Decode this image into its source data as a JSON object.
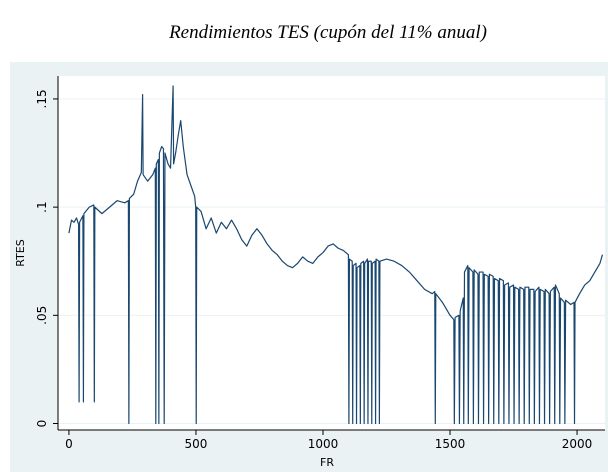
{
  "chart_data": {
    "type": "line",
    "title": "Rendimientos TES (cupón del 11% anual)",
    "x_label": "FR",
    "y_label": "RTES",
    "color": "#1a476f",
    "grid": true,
    "xlim": [
      -43,
      2110
    ],
    "ylim": [
      -0.003,
      0.1606
    ],
    "xticks": [
      0,
      500,
      1000,
      1500,
      2000
    ],
    "yticks": [
      0,
      {
        "value": 0.05,
        "label": ".05"
      },
      {
        "value": 0.1,
        "label": ".1"
      },
      {
        "value": 0.15,
        "label": ".15"
      }
    ],
    "x": [
      0,
      10,
      20,
      30,
      38,
      40,
      42,
      55,
      57,
      59,
      80,
      98,
      100,
      102,
      130,
      160,
      190,
      220,
      234,
      236,
      238,
      255,
      270,
      285,
      290,
      292,
      310,
      330,
      340,
      342,
      344,
      352,
      354,
      356,
      365,
      372,
      375,
      378,
      390,
      400,
      410,
      412,
      420,
      430,
      440,
      450,
      465,
      480,
      495,
      499,
      501,
      503,
      520,
      540,
      560,
      580,
      600,
      620,
      640,
      660,
      680,
      700,
      720,
      740,
      760,
      780,
      800,
      820,
      840,
      860,
      880,
      900,
      920,
      940,
      960,
      980,
      1000,
      1020,
      1040,
      1060,
      1080,
      1100,
      1102,
      1104,
      1115,
      1117,
      1119,
      1130,
      1132,
      1134,
      1145,
      1147,
      1149,
      1160,
      1162,
      1164,
      1175,
      1177,
      1179,
      1190,
      1192,
      1194,
      1205,
      1207,
      1209,
      1220,
      1222,
      1224,
      1250,
      1280,
      1310,
      1340,
      1370,
      1400,
      1430,
      1440,
      1442,
      1444,
      1470,
      1500,
      1515,
      1517,
      1520,
      1535,
      1537,
      1540,
      1552,
      1554,
      1557,
      1570,
      1572,
      1575,
      1590,
      1592,
      1595,
      1610,
      1612,
      1615,
      1630,
      1632,
      1635,
      1650,
      1652,
      1655,
      1670,
      1672,
      1675,
      1690,
      1692,
      1695,
      1710,
      1712,
      1715,
      1730,
      1732,
      1735,
      1750,
      1752,
      1755,
      1770,
      1772,
      1775,
      1790,
      1792,
      1795,
      1810,
      1812,
      1815,
      1830,
      1832,
      1835,
      1850,
      1852,
      1855,
      1870,
      1872,
      1875,
      1890,
      1892,
      1895,
      1910,
      1912,
      1915,
      1930,
      1932,
      1935,
      1950,
      1952,
      1955,
      1975,
      1988,
      1990,
      1992,
      2010,
      2030,
      2050,
      2070,
      2090,
      2100
    ],
    "values": [
      0.088,
      0.094,
      0.093,
      0.095,
      0.092,
      0.01,
      0.093,
      0.096,
      0.01,
      0.097,
      0.1,
      0.101,
      0.01,
      0.1,
      0.097,
      0.1,
      0.103,
      0.102,
      0.103,
      0,
      0.104,
      0.106,
      0.112,
      0.116,
      0.152,
      0.115,
      0.112,
      0.115,
      0.118,
      0,
      0.12,
      0.122,
      0,
      0.125,
      0.128,
      0.127,
      0,
      0.125,
      0.12,
      0.118,
      0.156,
      0.12,
      0.125,
      0.133,
      0.14,
      0.128,
      0.115,
      0.11,
      0.105,
      0.1,
      0,
      0.1,
      0.098,
      0.09,
      0.095,
      0.088,
      0.093,
      0.09,
      0.094,
      0.09,
      0.085,
      0.082,
      0.087,
      0.09,
      0.087,
      0.083,
      0.08,
      0.078,
      0.075,
      0.073,
      0.072,
      0.074,
      0.077,
      0.075,
      0.074,
      0.077,
      0.079,
      0.082,
      0.083,
      0.081,
      0.08,
      0.078,
      0,
      0.076,
      0.075,
      0,
      0.073,
      0.074,
      0,
      0.072,
      0.073,
      0,
      0.074,
      0.075,
      0,
      0.074,
      0.076,
      0,
      0.075,
      0.075,
      0,
      0.074,
      0.075,
      0,
      0.076,
      0.075,
      0,
      0.075,
      0.076,
      0.075,
      0.073,
      0.07,
      0.066,
      0.062,
      0.06,
      0.061,
      0,
      0.06,
      0.056,
      0.05,
      0.048,
      0,
      0.049,
      0.05,
      0,
      0.052,
      0.058,
      0,
      0.07,
      0.073,
      0,
      0.072,
      0.07,
      0,
      0.071,
      0.069,
      0,
      0.07,
      0.07,
      0,
      0.069,
      0.068,
      0,
      0.069,
      0.068,
      0,
      0.067,
      0.066,
      0,
      0.067,
      0.066,
      0,
      0.064,
      0.065,
      0,
      0.063,
      0.064,
      0,
      0.063,
      0.062,
      0,
      0.063,
      0.062,
      0,
      0.063,
      0.063,
      0,
      0.062,
      0.062,
      0,
      0.061,
      0.063,
      0,
      0.062,
      0.061,
      0,
      0.062,
      0.06,
      0,
      0.061,
      0.063,
      0,
      0.064,
      0.06,
      0,
      0.058,
      0.056,
      0,
      0.057,
      0.055,
      0.056,
      0,
      0.056,
      0.06,
      0.064,
      0.066,
      0.07,
      0.074,
      0.078
    ]
  }
}
